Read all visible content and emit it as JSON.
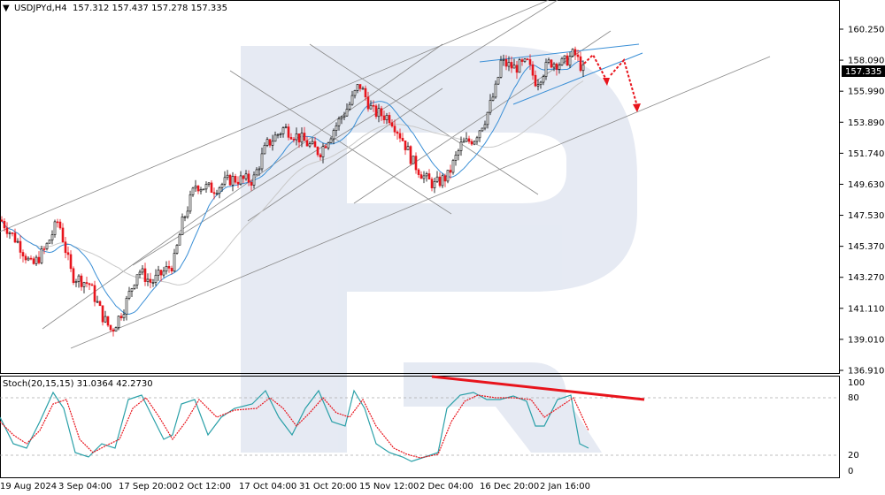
{
  "header": {
    "symbol": "USDJPYd,H4",
    "ohlc": "157.312 157.437 157.278 157.335"
  },
  "stoch": {
    "label": "Stoch(20,15,15) 31.0364 42.2730",
    "levels": [
      "100",
      "80",
      "20",
      "0"
    ]
  },
  "colors": {
    "bull_candle": "#000000",
    "bear_candle": "#e8141c",
    "ma_fast": "#3a8fd6",
    "ma_slow": "#c8c8c8",
    "stoch_main": "#2aa0a8",
    "stoch_signal": "#e8141c",
    "current_price_bg": "#000000",
    "arrow": "#e8141c",
    "wedge": "#3a8fd6"
  },
  "chart_data": {
    "type": "candlestick",
    "title": "USDJPYd,H4",
    "y_ticks": [
      "160.250",
      "158.090",
      "155.990",
      "153.890",
      "151.740",
      "149.630",
      "147.530",
      "145.370",
      "143.270",
      "141.110",
      "139.010",
      "136.910"
    ],
    "x_ticks": [
      "19 Aug 2024",
      "3 Sep 04:00",
      "17 Sep 20:00",
      "2 Oct 12:00",
      "17 Oct 04:00",
      "31 Oct 20:00",
      "15 Nov 12:00",
      "2 Dec 04:00",
      "16 Dec 20:00",
      "2 Jan 16:00"
    ],
    "current_price": "157.335",
    "ylim": [
      136.91,
      161.4
    ],
    "price_path": [
      [
        0,
        147.2
      ],
      [
        20,
        145.6
      ],
      [
        35,
        144.0
      ],
      [
        50,
        145.2
      ],
      [
        65,
        147.2
      ],
      [
        80,
        143.4
      ],
      [
        100,
        142.8
      ],
      [
        115,
        140.6
      ],
      [
        125,
        139.6
      ],
      [
        140,
        141.3
      ],
      [
        155,
        143.8
      ],
      [
        170,
        142.9
      ],
      [
        185,
        143.7
      ],
      [
        195,
        144.2
      ],
      [
        205,
        147.0
      ],
      [
        220,
        149.6
      ],
      [
        240,
        149.3
      ],
      [
        260,
        150.0
      ],
      [
        285,
        149.9
      ],
      [
        300,
        152.3
      ],
      [
        320,
        153.5
      ],
      [
        340,
        152.7
      ],
      [
        360,
        151.8
      ],
      [
        375,
        153.3
      ],
      [
        395,
        155.2
      ],
      [
        405,
        156.5
      ],
      [
        420,
        154.6
      ],
      [
        440,
        154.2
      ],
      [
        455,
        152.6
      ],
      [
        465,
        151.2
      ],
      [
        480,
        150.0
      ],
      [
        490,
        149.6
      ],
      [
        505,
        150.2
      ],
      [
        520,
        152.3
      ],
      [
        535,
        152.8
      ],
      [
        548,
        154.2
      ],
      [
        560,
        156.3
      ],
      [
        565,
        158.0
      ],
      [
        580,
        157.6
      ],
      [
        595,
        157.9
      ],
      [
        605,
        156.6
      ],
      [
        620,
        158.0
      ],
      [
        635,
        157.9
      ],
      [
        648,
        158.6
      ],
      [
        660,
        157.2
      ]
    ],
    "stoch_main": [
      [
        0,
        60
      ],
      [
        15,
        30
      ],
      [
        30,
        25
      ],
      [
        45,
        55
      ],
      [
        60,
        88
      ],
      [
        72,
        70
      ],
      [
        85,
        20
      ],
      [
        100,
        15
      ],
      [
        115,
        30
      ],
      [
        130,
        25
      ],
      [
        145,
        80
      ],
      [
        160,
        85
      ],
      [
        170,
        65
      ],
      [
        185,
        35
      ],
      [
        195,
        40
      ],
      [
        205,
        75
      ],
      [
        220,
        80
      ],
      [
        235,
        40
      ],
      [
        250,
        60
      ],
      [
        265,
        70
      ],
      [
        285,
        75
      ],
      [
        300,
        90
      ],
      [
        315,
        60
      ],
      [
        330,
        40
      ],
      [
        345,
        70
      ],
      [
        360,
        90
      ],
      [
        375,
        55
      ],
      [
        390,
        50
      ],
      [
        400,
        90
      ],
      [
        412,
        70
      ],
      [
        425,
        30
      ],
      [
        440,
        20
      ],
      [
        455,
        15
      ],
      [
        465,
        10
      ],
      [
        480,
        15
      ],
      [
        495,
        20
      ],
      [
        505,
        70
      ],
      [
        520,
        85
      ],
      [
        535,
        88
      ],
      [
        550,
        80
      ],
      [
        565,
        80
      ],
      [
        580,
        84
      ],
      [
        595,
        78
      ],
      [
        605,
        50
      ],
      [
        615,
        50
      ],
      [
        630,
        80
      ],
      [
        645,
        85
      ],
      [
        655,
        30
      ],
      [
        665,
        25
      ]
    ],
    "stoch_signal": [
      [
        0,
        55
      ],
      [
        15,
        40
      ],
      [
        30,
        30
      ],
      [
        45,
        45
      ],
      [
        60,
        75
      ],
      [
        75,
        80
      ],
      [
        90,
        35
      ],
      [
        105,
        20
      ],
      [
        120,
        28
      ],
      [
        135,
        35
      ],
      [
        150,
        70
      ],
      [
        165,
        82
      ],
      [
        180,
        60
      ],
      [
        195,
        35
      ],
      [
        210,
        55
      ],
      [
        225,
        80
      ],
      [
        245,
        60
      ],
      [
        265,
        68
      ],
      [
        290,
        70
      ],
      [
        305,
        82
      ],
      [
        320,
        70
      ],
      [
        335,
        50
      ],
      [
        350,
        65
      ],
      [
        365,
        82
      ],
      [
        380,
        65
      ],
      [
        395,
        60
      ],
      [
        410,
        80
      ],
      [
        425,
        50
      ],
      [
        445,
        25
      ],
      [
        460,
        18
      ],
      [
        475,
        14
      ],
      [
        495,
        18
      ],
      [
        510,
        55
      ],
      [
        525,
        78
      ],
      [
        540,
        85
      ],
      [
        560,
        82
      ],
      [
        580,
        82
      ],
      [
        600,
        80
      ],
      [
        615,
        60
      ],
      [
        630,
        70
      ],
      [
        648,
        82
      ],
      [
        665,
        45
      ]
    ]
  }
}
